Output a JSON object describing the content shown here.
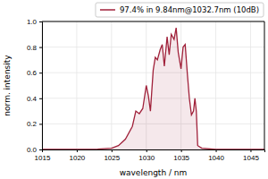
{
  "chart_data": {
    "type": "area",
    "x_label": "wavelength / nm",
    "y_label": "norm. intensity",
    "x": [
      1015,
      1020,
      1023,
      1025,
      1026,
      1027,
      1028,
      1028.5,
      1029,
      1029.5,
      1030,
      1030.3,
      1030.6,
      1031,
      1031.3,
      1031.6,
      1032,
      1032.3,
      1032.6,
      1033,
      1033.3,
      1033.6,
      1034,
      1034.3,
      1034.6,
      1035,
      1035.3,
      1035.6,
      1035.9,
      1036.2,
      1036.5,
      1036.8,
      1037,
      1037.2,
      1037.4,
      1038,
      1040,
      1047
    ],
    "series": [
      {
        "name": "97.4% in 9.84nm@1032.7nm (10dB)",
        "color": "#a0213a",
        "values": [
          0,
          0,
          0.003,
          0.01,
          0.03,
          0.08,
          0.18,
          0.3,
          0.28,
          0.32,
          0.5,
          0.42,
          0.3,
          0.62,
          0.72,
          0.7,
          0.78,
          0.82,
          0.65,
          0.88,
          0.74,
          0.9,
          0.86,
          0.95,
          0.76,
          0.63,
          0.8,
          0.82,
          0.6,
          0.4,
          0.27,
          0.3,
          0.4,
          0.3,
          0.03,
          0.01,
          0,
          0
        ]
      }
    ],
    "xlim": [
      1015,
      1047
    ],
    "xticks": [
      1015,
      1020,
      1025,
      1030,
      1035,
      1040,
      1045
    ],
    "ylim": [
      0,
      1
    ],
    "yticks": [
      {
        "value": 0,
        "label": "0.0"
      },
      {
        "value": 0.2,
        "label": "0.2"
      },
      {
        "value": 0.4,
        "label": "0.4"
      },
      {
        "value": 0.6,
        "label": "0.6"
      },
      {
        "value": 0.8,
        "label": "0.8"
      },
      {
        "value": 1,
        "label": "1.0"
      }
    ],
    "grid": true,
    "legend": "upper right"
  }
}
